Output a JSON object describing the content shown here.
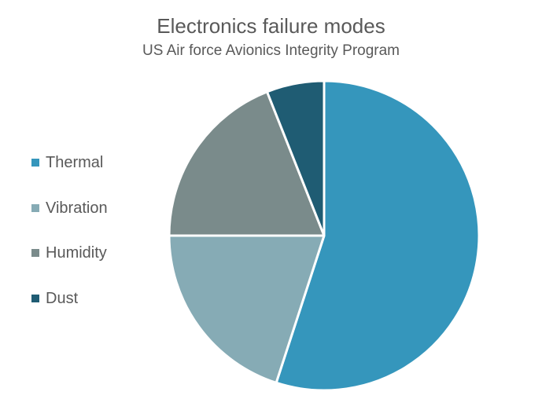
{
  "chart_data": {
    "type": "pie",
    "title": "Electronics failure modes",
    "subtitle": "US Air force Avionics Integrity Program",
    "legend_position": "left",
    "slices": [
      {
        "label": "Thermal",
        "value": 55,
        "color": "#3596bc"
      },
      {
        "label": "Vibration",
        "value": 20,
        "color": "#86abb5"
      },
      {
        "label": "Humidity",
        "value": 19,
        "color": "#7a8b8b"
      },
      {
        "label": "Dust",
        "value": 6,
        "color": "#1f5c73"
      }
    ]
  }
}
